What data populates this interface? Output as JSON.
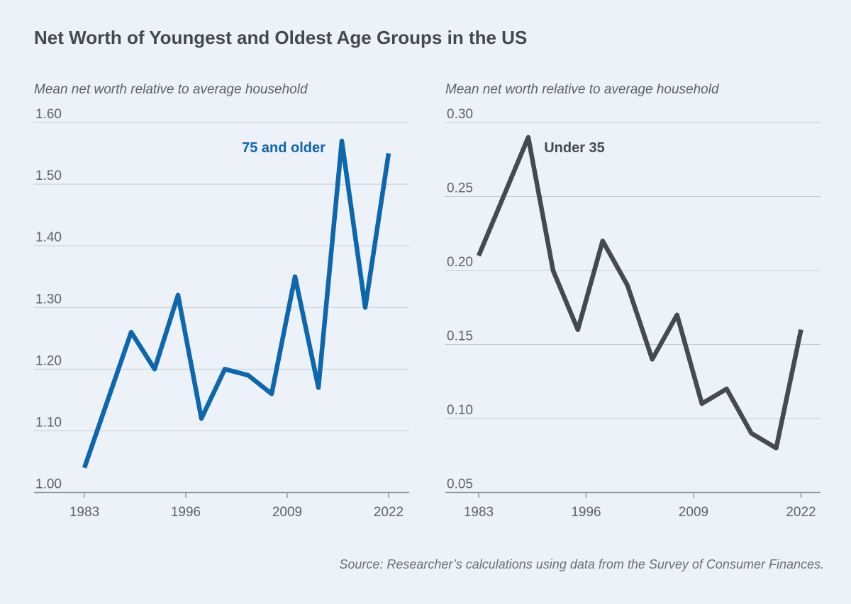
{
  "title": "Net Worth of Youngest and Oldest Age Groups in the US",
  "source_note": "Source: Researcher’s calculations using data from the Survey of Consumer Finances.",
  "colors": {
    "background": "#edf1f8",
    "blue_series": "#0e67ad",
    "dark_series": "#46494e",
    "gridline": "#c7ccd3",
    "axis": "#8f969f",
    "title_text": "#424950",
    "tick_text": "#5d646c",
    "subtitle_text": "#5b626b",
    "source_text": "#6a717a"
  },
  "chart_data": [
    {
      "type": "line",
      "axis_label": "Mean net worth relative to average household",
      "series_label": "75 and older",
      "color_key": "blue_series",
      "grid": true,
      "legend_position": "inside-top",
      "x": [
        1983,
        1986,
        1989,
        1992,
        1995,
        1998,
        2001,
        2004,
        2007,
        2010,
        2013,
        2016,
        2019,
        2022
      ],
      "values": [
        1.04,
        1.15,
        1.26,
        1.2,
        1.32,
        1.12,
        1.2,
        1.19,
        1.16,
        1.35,
        1.17,
        1.57,
        1.3,
        1.55
      ],
      "xticks": [
        1983,
        1996,
        2009,
        2022
      ],
      "ylim": [
        1.0,
        1.6
      ],
      "ytick_step": 0.1,
      "yticks": [
        "1.60",
        "1.50",
        "1.40",
        "1.30",
        "1.20",
        "1.10",
        "1.00"
      ]
    },
    {
      "type": "line",
      "axis_label": "Mean net worth relative to average household",
      "series_label": "Under 35",
      "color_key": "dark_series",
      "grid": true,
      "legend_position": "inside-top",
      "x": [
        1983,
        1986,
        1989,
        1992,
        1995,
        1998,
        2001,
        2004,
        2007,
        2010,
        2013,
        2016,
        2019,
        2022
      ],
      "values": [
        0.21,
        0.25,
        0.29,
        0.2,
        0.16,
        0.22,
        0.19,
        0.14,
        0.17,
        0.11,
        0.12,
        0.09,
        0.08,
        0.16
      ],
      "xticks": [
        1983,
        1996,
        2009,
        2022
      ],
      "ylim": [
        0.05,
        0.3
      ],
      "ytick_step": 0.05,
      "yticks": [
        "0.30",
        "0.25",
        "0.20",
        "0.15",
        "0.10",
        "0.05"
      ]
    }
  ]
}
